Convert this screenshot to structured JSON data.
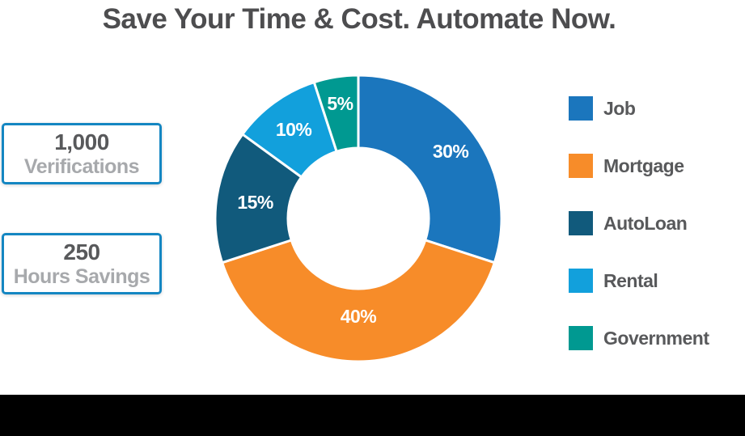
{
  "title": "Save Your Time & Cost. Automate Now.",
  "stats": [
    {
      "value": "1,000",
      "label": "Verifications"
    },
    {
      "value": "250",
      "label": "Hours Savings"
    }
  ],
  "chart_data": {
    "type": "pie",
    "subtype": "donut",
    "categories": [
      "Job",
      "Mortgage",
      "AutoLoan",
      "Rental",
      "Government"
    ],
    "values": [
      30,
      40,
      15,
      10,
      5
    ],
    "data_labels": [
      "30%",
      "40%",
      "15%",
      "10%",
      "5%"
    ],
    "colors": [
      "#1b76bd",
      "#f78c29",
      "#115a7c",
      "#12a0dc",
      "#009991"
    ],
    "start_angle_deg": 0,
    "direction": "clockwise",
    "legend_position": "right",
    "title": "Save Your Time & Cost. Automate Now."
  },
  "legend": {
    "items": [
      {
        "label": "Job",
        "color": "#1b76bd"
      },
      {
        "label": "Mortgage",
        "color": "#f78c29"
      },
      {
        "label": "AutoLoan",
        "color": "#115a7c"
      },
      {
        "label": "Rental",
        "color": "#12a0dc"
      },
      {
        "label": "Government",
        "color": "#009991"
      }
    ]
  },
  "colors": {
    "background": "#ffffff",
    "title": "#4d4d4f",
    "stat_value": "#58595b",
    "stat_label": "#a7a9ac",
    "stat_border": "#1486c2",
    "legend_label": "#58595b",
    "slice_label": "#ffffff",
    "slice_gap": "#ffffff",
    "bottom_bar": "#000000"
  }
}
